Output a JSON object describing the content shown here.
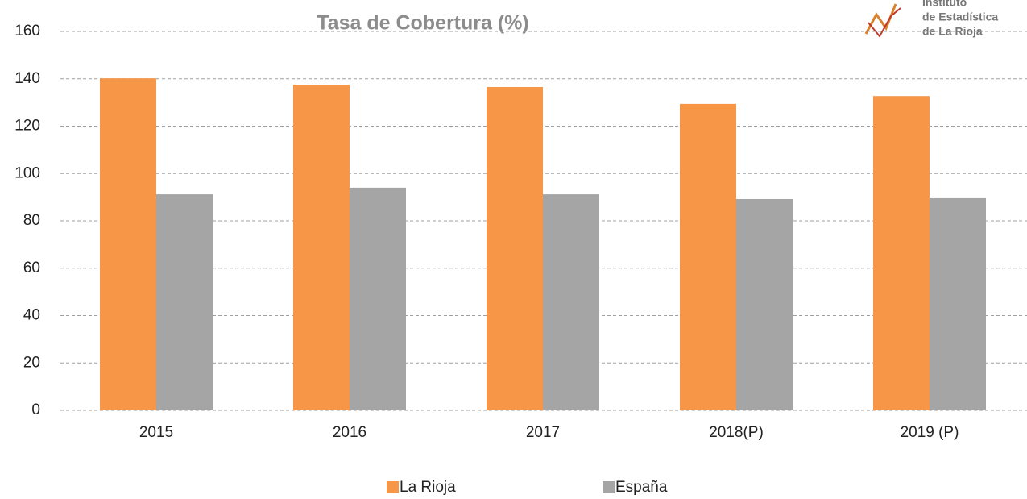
{
  "logo": {
    "lines": [
      "Instituto",
      "de Estadística",
      "de La Rioja"
    ]
  },
  "chart_data": {
    "type": "bar",
    "title": "Tasa de Cobertura (%)",
    "categories": [
      "2015",
      "2016",
      "2017",
      "2018(P)",
      "2019 (P)"
    ],
    "series": [
      {
        "name": "La Rioja",
        "color": "#f79646",
        "values": [
          140.2,
          137.5,
          136.5,
          129.4,
          132.7
        ]
      },
      {
        "name": "España",
        "color": "#a5a5a5",
        "values": [
          91.2,
          94,
          91.2,
          89.2,
          89.9
        ]
      }
    ],
    "ylim": [
      0,
      160
    ],
    "yticks": [
      0,
      20,
      40,
      60,
      80,
      100,
      120,
      140,
      160
    ],
    "grid": true,
    "legend": "bottom"
  }
}
